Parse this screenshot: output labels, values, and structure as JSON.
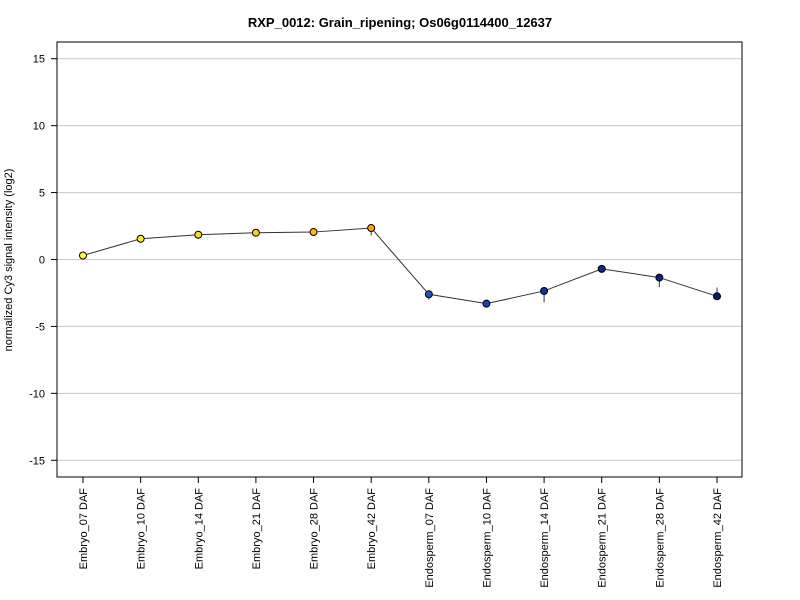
{
  "chart_data": {
    "type": "line",
    "title": "RXP_0012: Grain_ripening; Os06g0114400_12637",
    "xlabel": "",
    "ylabel": "normalized Cy3 signal intensity (log2)",
    "ylim": [
      -16.25,
      16.25
    ],
    "yticks": [
      15,
      10,
      5,
      0,
      -5,
      -10,
      -15
    ],
    "grid": true,
    "categories": [
      "Embryo_07 DAF",
      "Embryo_10 DAF",
      "Embryo_14 DAF",
      "Embryo_21 DAF",
      "Embryo_28 DAF",
      "Embryo_42 DAF",
      "Endosperm_07 DAF",
      "Endosperm_10 DAF",
      "Endosperm_14 DAF",
      "Endosperm_21 DAF",
      "Endosperm_28 DAF",
      "Endosperm_42 DAF"
    ],
    "series": [
      {
        "values": [
          0.3,
          1.55,
          1.85,
          2.0,
          2.05,
          2.35,
          -2.6,
          -3.3,
          -2.35,
          -0.7,
          -1.35,
          -2.75
        ],
        "error_low": [
          0.2,
          1.3,
          1.7,
          1.85,
          1.85,
          1.8,
          -3.0,
          -3.55,
          -3.2,
          -0.95,
          -2.05,
          -2.95
        ],
        "error_high": [
          0.45,
          1.75,
          2.0,
          2.15,
          2.25,
          2.55,
          -2.4,
          -3.1,
          -2.25,
          -0.5,
          -1.25,
          -2.1
        ],
        "colors": [
          "#ffff33",
          "#ffee22",
          "#ffdd22",
          "#ffcc22",
          "#ffbb11",
          "#ffaa00",
          "#2255bb",
          "#1a44aa",
          "#113399",
          "#0a2a88",
          "#0a2277",
          "#001a66"
        ]
      }
    ]
  }
}
